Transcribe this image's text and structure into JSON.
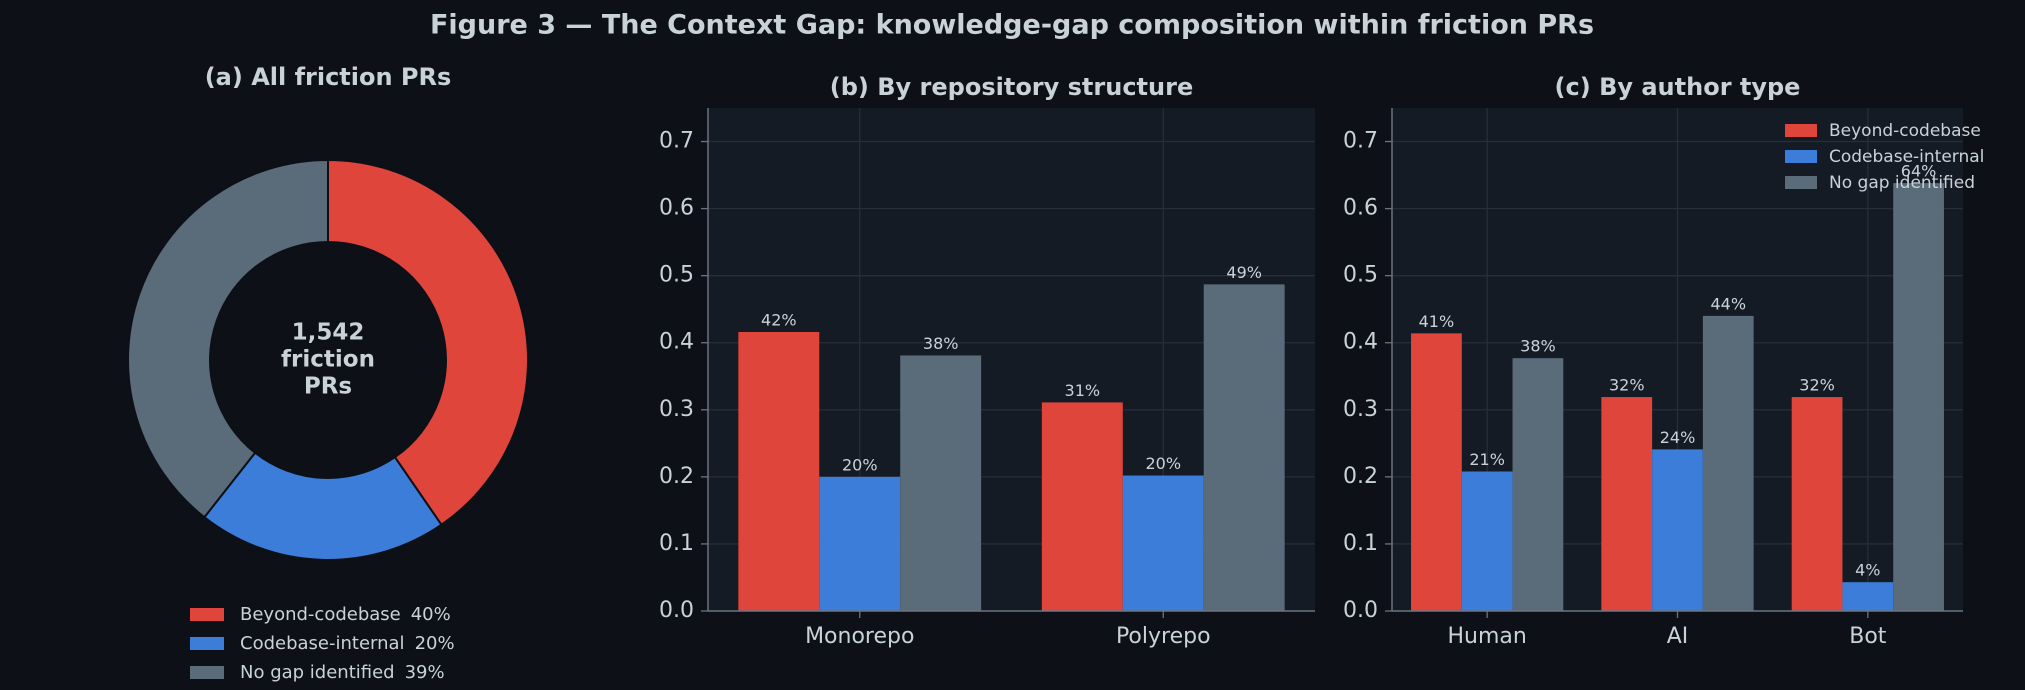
{
  "title": "Figure 3 — The Context Gap: knowledge-gap composition within friction PRs",
  "chart_data": [
    {
      "type": "pie",
      "title": "(a) All friction PRs",
      "categories": [
        "Beyond-codebase",
        "Codebase-internal",
        "No gap identified"
      ],
      "values": [
        40,
        20,
        39
      ],
      "value_labels": [
        "40%",
        "20%",
        "39%"
      ],
      "colors": [
        "#e0453b",
        "#3b7dd8",
        "#5a6b7a"
      ],
      "donut": true,
      "center_text": [
        "1,542",
        "friction",
        "PRs"
      ],
      "legend": "lower center"
    },
    {
      "type": "bar",
      "title": "(b) By repository structure",
      "categories": [
        "Monorepo",
        "Polyrepo"
      ],
      "series": [
        {
          "name": "Beyond-codebase",
          "color": "#e0453b",
          "values": [
            0.416,
            0.311
          ],
          "value_labels": [
            "42%",
            "31%"
          ]
        },
        {
          "name": "Codebase-internal",
          "color": "#3b7dd8",
          "values": [
            0.2,
            0.202
          ],
          "value_labels": [
            "20%",
            "20%"
          ]
        },
        {
          "name": "No gap identified",
          "color": "#5a6b7a",
          "values": [
            0.381,
            0.487
          ],
          "value_labels": [
            "38%",
            "49%"
          ]
        }
      ],
      "ylim": [
        0,
        0.75
      ],
      "yticks": [
        {
          "value": 0,
          "label": "0.0"
        },
        0.1,
        0.2,
        0.3,
        0.4,
        0.5,
        0.6,
        0.7
      ],
      "grid": true
    },
    {
      "type": "bar",
      "title": "(c) By author type",
      "categories": [
        "Human",
        "AI",
        "Bot"
      ],
      "series": [
        {
          "name": "Beyond-codebase",
          "color": "#e0453b",
          "values": [
            0.414,
            0.319,
            0.319
          ],
          "value_labels": [
            "41%",
            "32%",
            "32%"
          ]
        },
        {
          "name": "Codebase-internal",
          "color": "#3b7dd8",
          "values": [
            0.208,
            0.241,
            0.043
          ],
          "value_labels": [
            "21%",
            "24%",
            "4%"
          ]
        },
        {
          "name": "No gap identified",
          "color": "#5a6b7a",
          "values": [
            0.377,
            0.44,
            0.638
          ],
          "value_labels": [
            "38%",
            "44%",
            "64%"
          ]
        }
      ],
      "ylim": [
        0,
        0.75
      ],
      "yticks": [
        {
          "value": 0,
          "label": "0.0"
        },
        0.1,
        0.2,
        0.3,
        0.4,
        0.5,
        0.6,
        0.7
      ],
      "grid": true,
      "legend": "upper right"
    }
  ]
}
